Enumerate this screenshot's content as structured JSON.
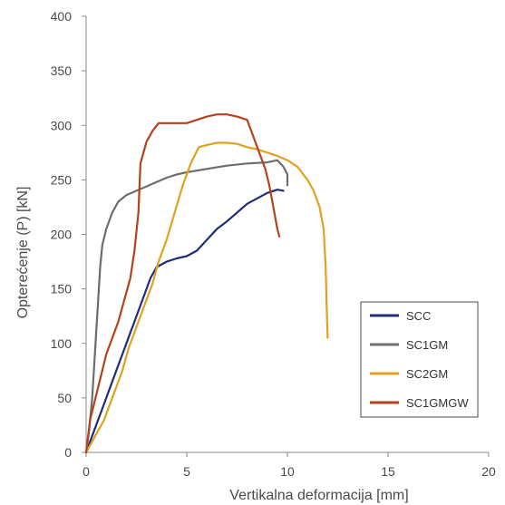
{
  "chart_data": {
    "type": "line",
    "title": "",
    "xlabel": "Vertikalna deformacija [mm]",
    "ylabel": "Opterećenje (P) [kN]",
    "xlim": [
      0,
      20
    ],
    "ylim": [
      0,
      400
    ],
    "xticks": [
      "0",
      "5",
      "10",
      "15",
      "20"
    ],
    "yticks": [
      "0",
      "50",
      "100",
      "150",
      "200",
      "250",
      "300",
      "350",
      "400"
    ],
    "grid": false,
    "legend_position": "right",
    "series": [
      {
        "name": "SCC",
        "color": "#1f2d7a",
        "points": [
          [
            0,
            0
          ],
          [
            0.2,
            10
          ],
          [
            0.4,
            20
          ],
          [
            0.6,
            30
          ],
          [
            0.8,
            40
          ],
          [
            1.0,
            50
          ],
          [
            1.2,
            60
          ],
          [
            1.4,
            70
          ],
          [
            1.6,
            80
          ],
          [
            1.8,
            90
          ],
          [
            2.0,
            100
          ],
          [
            2.2,
            110
          ],
          [
            2.4,
            120
          ],
          [
            2.6,
            130
          ],
          [
            2.8,
            140
          ],
          [
            3.0,
            150
          ],
          [
            3.2,
            160
          ],
          [
            3.5,
            170
          ],
          [
            4.0,
            175
          ],
          [
            4.5,
            178
          ],
          [
            5.0,
            180
          ],
          [
            5.5,
            185
          ],
          [
            6.0,
            195
          ],
          [
            6.5,
            205
          ],
          [
            7.0,
            212
          ],
          [
            7.5,
            220
          ],
          [
            8.0,
            228
          ],
          [
            8.5,
            233
          ],
          [
            9.0,
            238
          ],
          [
            9.5,
            241
          ],
          [
            9.8,
            240
          ]
        ]
      },
      {
        "name": "SC1GM",
        "color": "#6d6d6d",
        "points": [
          [
            0,
            0
          ],
          [
            0.15,
            20
          ],
          [
            0.3,
            50
          ],
          [
            0.4,
            80
          ],
          [
            0.5,
            110
          ],
          [
            0.6,
            140
          ],
          [
            0.7,
            170
          ],
          [
            0.8,
            190
          ],
          [
            1.0,
            205
          ],
          [
            1.3,
            220
          ],
          [
            1.6,
            230
          ],
          [
            2.0,
            236
          ],
          [
            2.5,
            240
          ],
          [
            3.0,
            244
          ],
          [
            3.5,
            248
          ],
          [
            4.0,
            252
          ],
          [
            4.5,
            255
          ],
          [
            5.0,
            257
          ],
          [
            6.0,
            260
          ],
          [
            7.0,
            263
          ],
          [
            8.0,
            265
          ],
          [
            9.0,
            266
          ],
          [
            9.5,
            268
          ],
          [
            9.8,
            262
          ],
          [
            10.0,
            255
          ],
          [
            10.0,
            245
          ]
        ]
      },
      {
        "name": "SC2GM",
        "color": "#e0a21e",
        "points": [
          [
            0,
            0
          ],
          [
            0.3,
            10
          ],
          [
            0.6,
            20
          ],
          [
            0.9,
            30
          ],
          [
            1.2,
            45
          ],
          [
            1.5,
            60
          ],
          [
            1.8,
            75
          ],
          [
            2.1,
            95
          ],
          [
            2.4,
            110
          ],
          [
            2.7,
            125
          ],
          [
            3.0,
            140
          ],
          [
            3.3,
            155
          ],
          [
            3.6,
            175
          ],
          [
            4.0,
            195
          ],
          [
            4.4,
            220
          ],
          [
            4.8,
            245
          ],
          [
            5.2,
            265
          ],
          [
            5.6,
            280
          ],
          [
            6.0,
            282
          ],
          [
            6.5,
            284
          ],
          [
            7.0,
            284
          ],
          [
            7.5,
            283
          ],
          [
            8.0,
            280
          ],
          [
            8.5,
            278
          ],
          [
            9.0,
            275
          ],
          [
            9.5,
            272
          ],
          [
            10.0,
            268
          ],
          [
            10.5,
            262
          ],
          [
            11.0,
            250
          ],
          [
            11.3,
            240
          ],
          [
            11.6,
            225
          ],
          [
            11.8,
            205
          ],
          [
            11.9,
            170
          ],
          [
            11.95,
            135
          ],
          [
            12.0,
            105
          ]
        ]
      },
      {
        "name": "SC1GMGW",
        "color": "#b5421e",
        "points": [
          [
            0,
            0
          ],
          [
            0.2,
            30
          ],
          [
            0.4,
            45
          ],
          [
            0.6,
            60
          ],
          [
            0.8,
            75
          ],
          [
            1.0,
            90
          ],
          [
            1.3,
            105
          ],
          [
            1.6,
            120
          ],
          [
            1.9,
            140
          ],
          [
            2.2,
            160
          ],
          [
            2.4,
            185
          ],
          [
            2.6,
            220
          ],
          [
            2.7,
            265
          ],
          [
            3.0,
            285
          ],
          [
            3.3,
            295
          ],
          [
            3.6,
            302
          ],
          [
            4.0,
            302
          ],
          [
            5.0,
            302
          ],
          [
            5.5,
            305
          ],
          [
            6.0,
            308
          ],
          [
            6.5,
            310
          ],
          [
            7.0,
            310
          ],
          [
            7.5,
            308
          ],
          [
            8.0,
            305
          ],
          [
            8.3,
            290
          ],
          [
            8.6,
            275
          ],
          [
            8.9,
            260
          ],
          [
            9.1,
            245
          ],
          [
            9.3,
            225
          ],
          [
            9.5,
            205
          ],
          [
            9.6,
            198
          ]
        ]
      }
    ]
  }
}
